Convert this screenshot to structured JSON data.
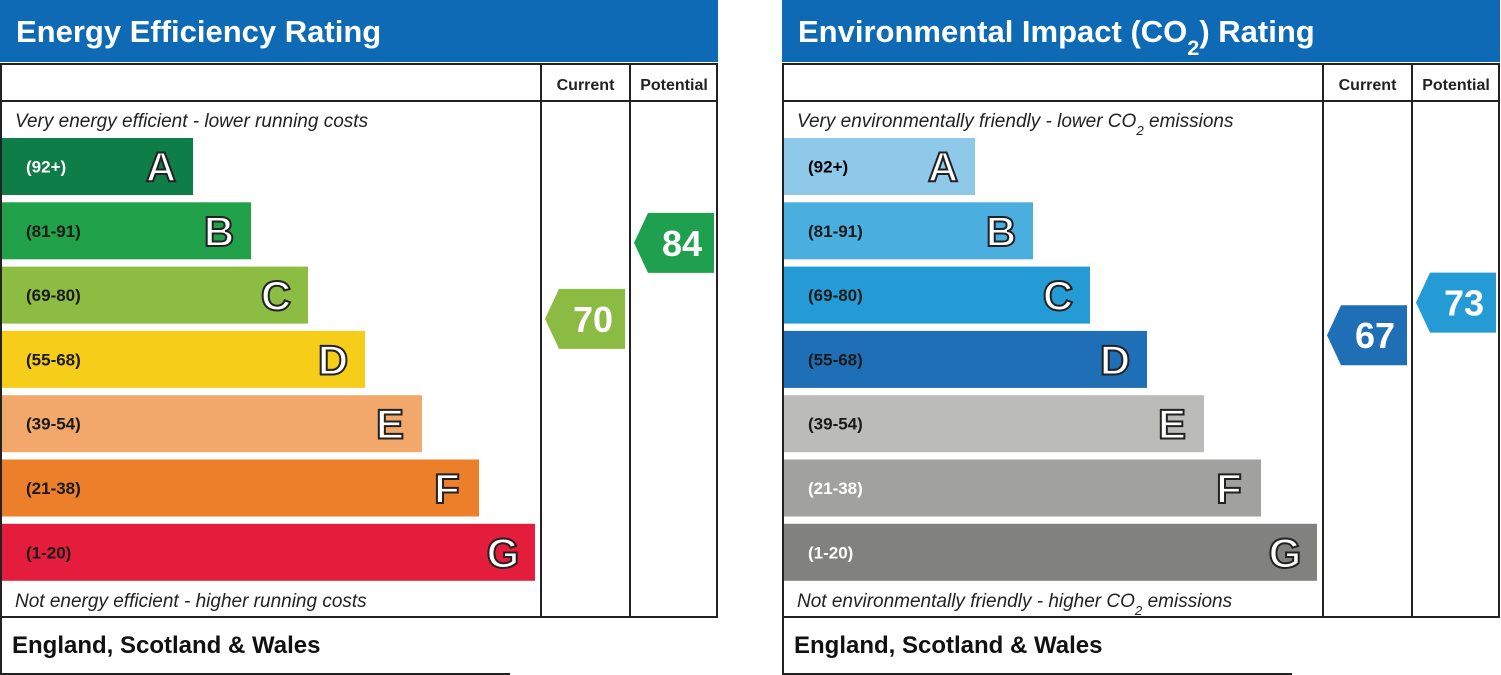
{
  "panels": [
    {
      "title_parts": [
        "Energy Efficiency Rating"
      ],
      "headers": [
        "Current",
        "Potential"
      ],
      "top_note_parts": [
        "Very energy efficient - lower running costs"
      ],
      "bottom_note_parts": [
        "Not energy efficient - higher running costs"
      ],
      "bands": [
        {
          "range": "(92+)",
          "letter": "A",
          "color": "#0f7d47",
          "text_color": "#ffffff"
        },
        {
          "range": "(81-91)",
          "letter": "B",
          "color": "#22a14b",
          "text_color": "#1a1a1a"
        },
        {
          "range": "(69-80)",
          "letter": "C",
          "color": "#8dbc42",
          "text_color": "#1a1a1a"
        },
        {
          "range": "(55-68)",
          "letter": "D",
          "color": "#f6cd19",
          "text_color": "#1a1a1a"
        },
        {
          "range": "(39-54)",
          "letter": "E",
          "color": "#f2a86b",
          "text_color": "#1a1a1a"
        },
        {
          "range": "(21-38)",
          "letter": "F",
          "color": "#ee7f2a",
          "text_color": "#1a1a1a"
        },
        {
          "range": "(1-20)",
          "letter": "G",
          "color": "#e31d3b",
          "text_color": "#1a1a1a"
        }
      ],
      "current": {
        "value": 70,
        "color": "#8cbb44"
      },
      "potential": {
        "value": 84,
        "color": "#1fa04f"
      },
      "footer": "England, Scotland & Wales"
    },
    {
      "title_parts": [
        "Environmental Impact (CO",
        "2",
        ") Rating"
      ],
      "headers": [
        "Current",
        "Potential"
      ],
      "top_note_parts": [
        "Very environmentally friendly - lower CO",
        "2",
        " emissions"
      ],
      "bottom_note_parts": [
        "Not environmentally friendly - higher CO",
        "2",
        " emissions"
      ],
      "bands": [
        {
          "range": "(92+)",
          "letter": "A",
          "color": "#8ec9ea",
          "text_color": "#000000"
        },
        {
          "range": "(81-91)",
          "letter": "B",
          "color": "#4aaedf",
          "text_color": "#1a1a1a"
        },
        {
          "range": "(69-80)",
          "letter": "C",
          "color": "#249bd4",
          "text_color": "#1a1a1a"
        },
        {
          "range": "(55-68)",
          "letter": "D",
          "color": "#1e6fb6",
          "text_color": "#1a1a1a"
        },
        {
          "range": "(39-54)",
          "letter": "E",
          "color": "#bbbbb9",
          "text_color": "#1a1a1a"
        },
        {
          "range": "(21-38)",
          "letter": "F",
          "color": "#a1a1a0",
          "text_color": "#ffffff"
        },
        {
          "range": "(1-20)",
          "letter": "G",
          "color": "#818180",
          "text_color": "#ffffff"
        }
      ],
      "current": {
        "value": 67,
        "color": "#1e6fb6"
      },
      "potential": {
        "value": 73,
        "color": "#249bd4"
      },
      "footer": "England, Scotland & Wales"
    }
  ]
}
